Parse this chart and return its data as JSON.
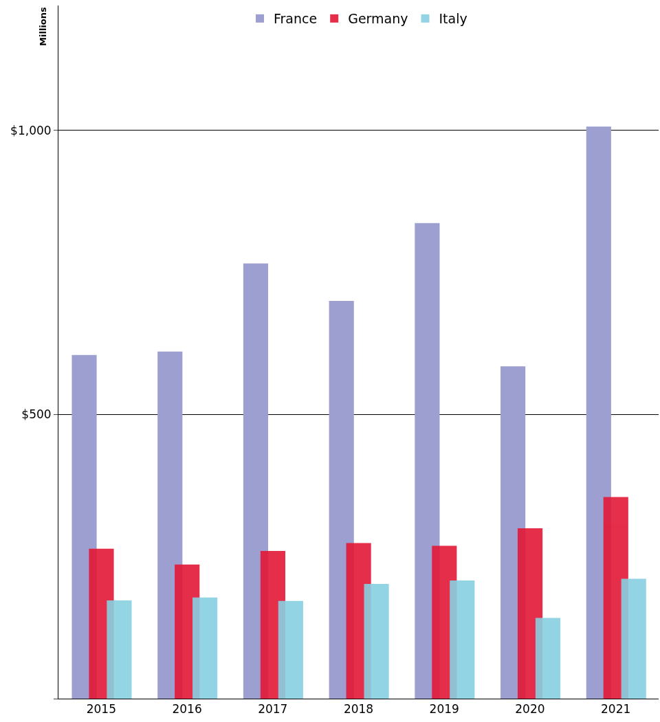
{
  "chart_data": {
    "type": "bar",
    "ylabel": "Millions",
    "categories": [
      "2015",
      "2016",
      "2017",
      "2018",
      "2019",
      "2020",
      "2021"
    ],
    "series": [
      {
        "name": "France",
        "color": "#9d9fd0",
        "values": [
          605,
          611,
          766,
          700,
          837,
          585,
          1007
        ]
      },
      {
        "name": "Germany",
        "color": "#e31837",
        "values": [
          264,
          236,
          260,
          274,
          269,
          300,
          355
        ]
      },
      {
        "name": "Italy",
        "color": "#87d0e0",
        "values": [
          173,
          178,
          172,
          202,
          208,
          142,
          211
        ]
      }
    ],
    "ylim": [
      0,
      1220
    ],
    "yticks": [
      {
        "value": 0,
        "label": null
      },
      {
        "value": 500,
        "label": "$500"
      },
      {
        "value": 1000,
        "label": "$1,000"
      }
    ],
    "grid": "y",
    "legend": "top"
  }
}
